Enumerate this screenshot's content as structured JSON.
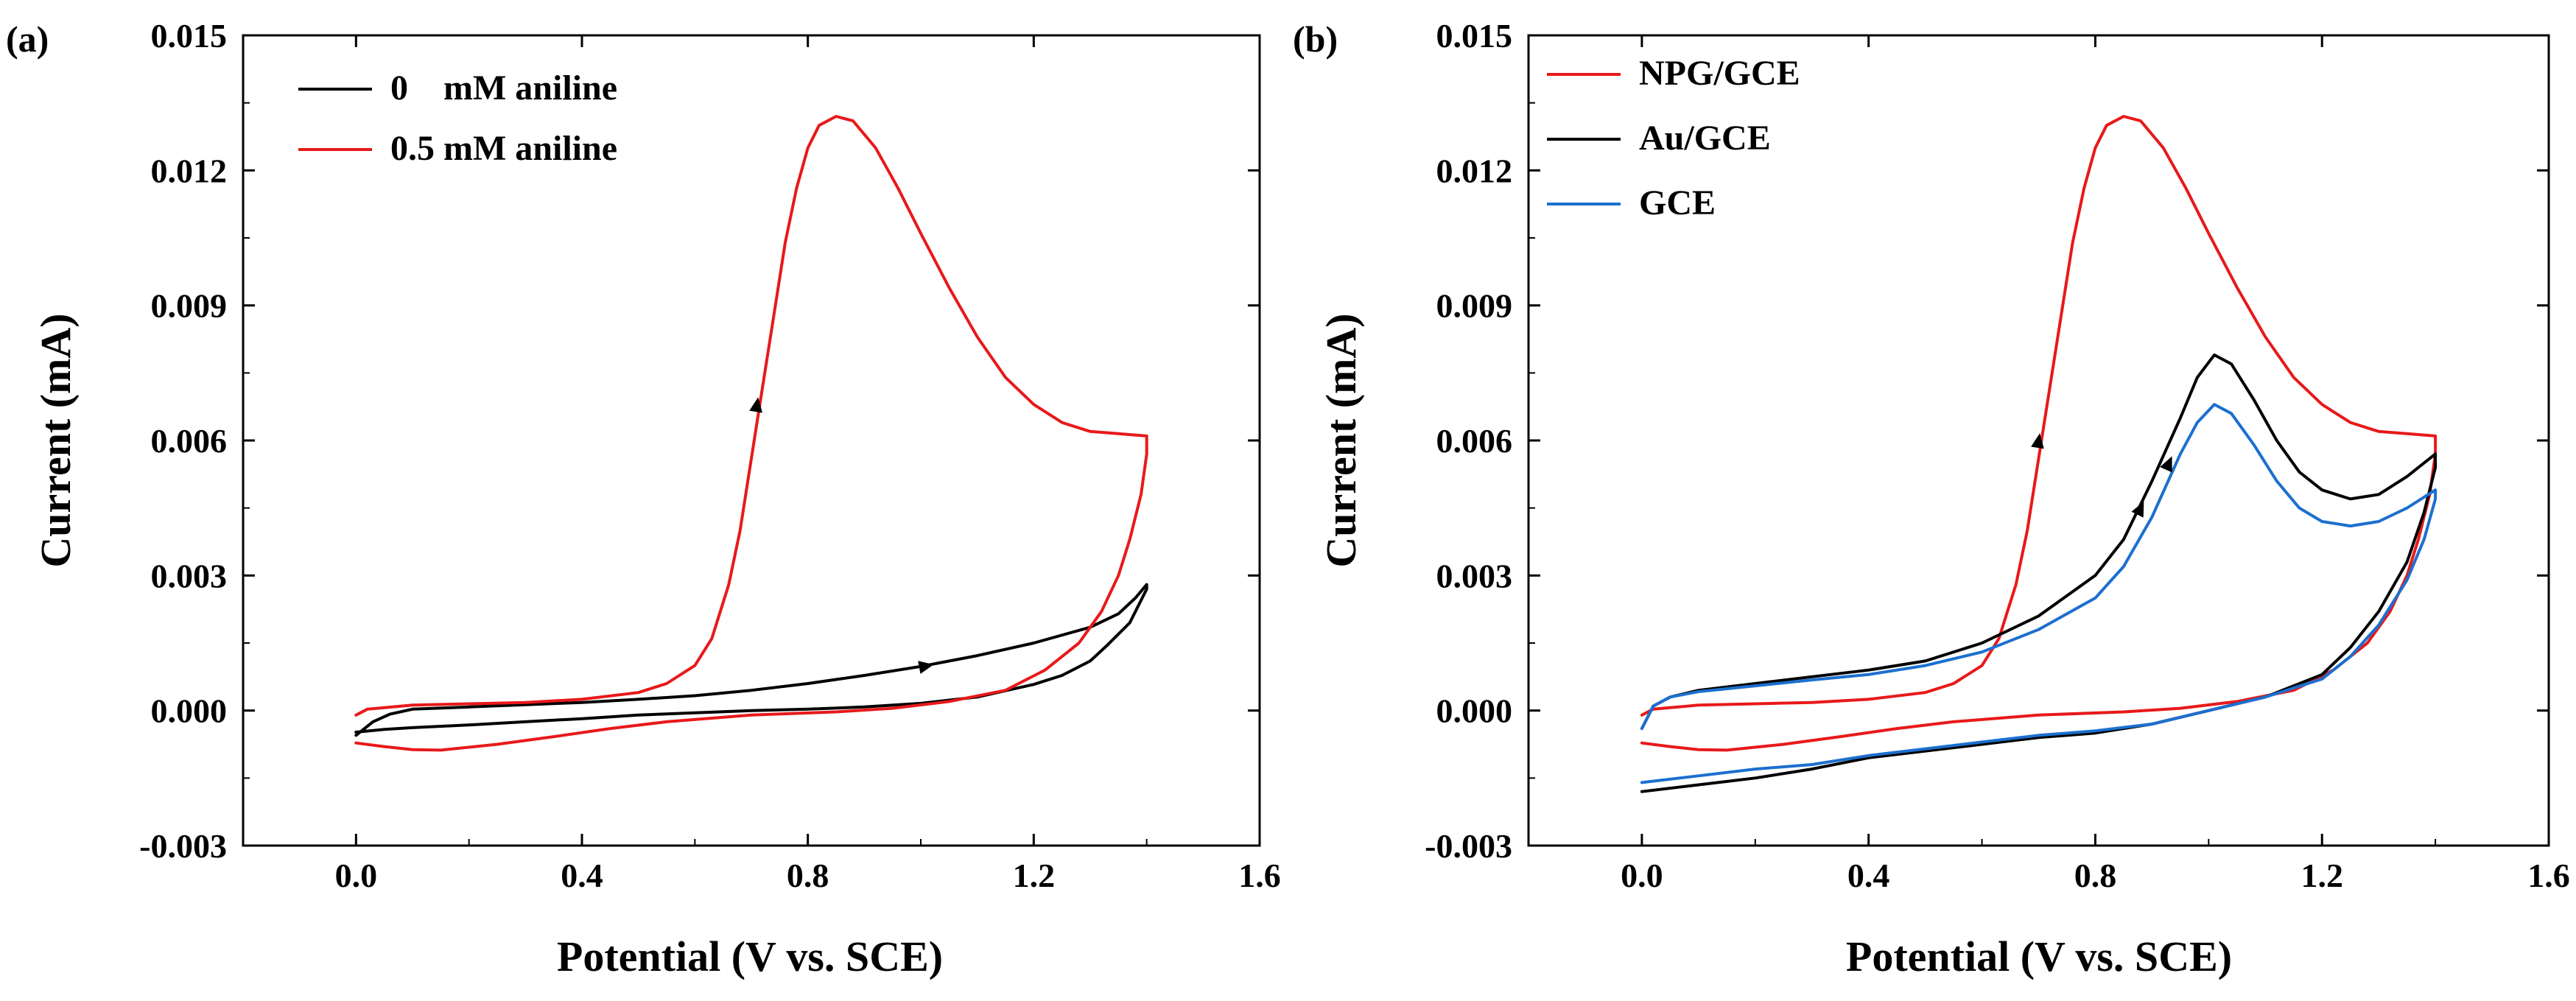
{
  "figure": {
    "panels": [
      "(a)",
      "(b)"
    ]
  },
  "chart_data": [
    {
      "type": "line",
      "panel_label": "(a)",
      "title": "",
      "xlabel": "Potential (V vs.  SCE)",
      "ylabel": "Current (mA)",
      "xlim": [
        -0.2,
        1.6
      ],
      "ylim": [
        -0.003,
        0.015
      ],
      "xticks": [
        "0.0",
        "0.4",
        "0.8",
        "1.2",
        "1.6"
      ],
      "yticks": [
        "-0.003",
        "0.000",
        "0.003",
        "0.006",
        "0.009",
        "0.012",
        "0.015"
      ],
      "grid": false,
      "legend_position": "top-left",
      "legend": [
        "0    mM aniline",
        "0.5 mM aniline"
      ],
      "series": [
        {
          "name": "0    mM aniline",
          "color": "#000000",
          "arrow": {
            "x": 1.01,
            "y": 0.00099
          },
          "points": [
            [
              0.0,
              -0.00055
            ],
            [
              0.03,
              -0.00025
            ],
            [
              0.06,
              -8e-05
            ],
            [
              0.1,
              3e-05
            ],
            [
              0.2,
              8e-05
            ],
            [
              0.3,
              0.00013
            ],
            [
              0.4,
              0.00018
            ],
            [
              0.5,
              0.00025
            ],
            [
              0.6,
              0.00033
            ],
            [
              0.7,
              0.00045
            ],
            [
              0.8,
              0.0006
            ],
            [
              0.9,
              0.00078
            ],
            [
              1.0,
              0.00098
            ],
            [
              1.1,
              0.00122
            ],
            [
              1.2,
              0.0015
            ],
            [
              1.3,
              0.00185
            ],
            [
              1.35,
              0.00215
            ],
            [
              1.38,
              0.0025
            ],
            [
              1.4,
              0.0028
            ],
            [
              1.4,
              0.0027
            ],
            [
              1.37,
              0.00195
            ],
            [
              1.33,
              0.00145
            ],
            [
              1.3,
              0.0011
            ],
            [
              1.25,
              0.00078
            ],
            [
              1.2,
              0.00058
            ],
            [
              1.1,
              0.0003
            ],
            [
              1.0,
              0.00016
            ],
            [
              0.9,
              8e-05
            ],
            [
              0.8,
              3e-05
            ],
            [
              0.7,
              0.0
            ],
            [
              0.6,
              -5e-05
            ],
            [
              0.5,
              -0.0001
            ],
            [
              0.4,
              -0.00018
            ],
            [
              0.3,
              -0.00025
            ],
            [
              0.2,
              -0.00032
            ],
            [
              0.1,
              -0.00038
            ],
            [
              0.05,
              -0.00042
            ],
            [
              0.0,
              -0.00048
            ]
          ]
        },
        {
          "name": "0.5 mM aniline",
          "color": "#e8191a",
          "arrow": {
            "x": 0.71,
            "y": 0.0068
          },
          "points": [
            [
              0.0,
              -0.0001
            ],
            [
              0.02,
              3e-05
            ],
            [
              0.1,
              0.00012
            ],
            [
              0.2,
              0.00015
            ],
            [
              0.3,
              0.00018
            ],
            [
              0.4,
              0.00025
            ],
            [
              0.5,
              0.0004
            ],
            [
              0.55,
              0.0006
            ],
            [
              0.6,
              0.001
            ],
            [
              0.63,
              0.0016
            ],
            [
              0.66,
              0.0028
            ],
            [
              0.68,
              0.004
            ],
            [
              0.7,
              0.0056
            ],
            [
              0.72,
              0.0072
            ],
            [
              0.74,
              0.0088
            ],
            [
              0.76,
              0.0104
            ],
            [
              0.78,
              0.0116
            ],
            [
              0.8,
              0.0125
            ],
            [
              0.82,
              0.013
            ],
            [
              0.85,
              0.0132
            ],
            [
              0.88,
              0.0131
            ],
            [
              0.92,
              0.0125
            ],
            [
              0.96,
              0.0116
            ],
            [
              1.0,
              0.0106
            ],
            [
              1.05,
              0.0094
            ],
            [
              1.1,
              0.0083
            ],
            [
              1.15,
              0.0074
            ],
            [
              1.2,
              0.0068
            ],
            [
              1.25,
              0.0064
            ],
            [
              1.3,
              0.0062
            ],
            [
              1.35,
              0.00615
            ],
            [
              1.4,
              0.0061
            ],
            [
              1.4,
              0.0057
            ],
            [
              1.39,
              0.0048
            ],
            [
              1.37,
              0.0038
            ],
            [
              1.35,
              0.003
            ],
            [
              1.32,
              0.0022
            ],
            [
              1.28,
              0.0015
            ],
            [
              1.22,
              0.0009
            ],
            [
              1.15,
              0.00045
            ],
            [
              1.05,
              0.0002
            ],
            [
              0.95,
              5e-05
            ],
            [
              0.85,
              -3e-05
            ],
            [
              0.7,
              -0.0001
            ],
            [
              0.55,
              -0.00025
            ],
            [
              0.45,
              -0.0004
            ],
            [
              0.35,
              -0.00058
            ],
            [
              0.25,
              -0.00075
            ],
            [
              0.15,
              -0.00088
            ],
            [
              0.1,
              -0.00087
            ],
            [
              0.05,
              -0.0008
            ],
            [
              0.0,
              -0.00072
            ]
          ]
        }
      ]
    },
    {
      "type": "line",
      "panel_label": "(b)",
      "title": "",
      "xlabel": "Potential (V vs.  SCE)",
      "ylabel": "Current (mA)",
      "xlim": [
        -0.2,
        1.6
      ],
      "ylim": [
        -0.003,
        0.015
      ],
      "xticks": [
        "0.0",
        "0.4",
        "0.8",
        "1.2",
        "1.6"
      ],
      "yticks": [
        "-0.003",
        "0.000",
        "0.003",
        "0.006",
        "0.009",
        "0.012",
        "0.015"
      ],
      "grid": false,
      "legend_position": "top-left",
      "legend": [
        "NPG/GCE",
        "Au/GCE",
        "GCE"
      ],
      "series": [
        {
          "name": "NPG/GCE",
          "color": "#e8191a",
          "arrow": {
            "x": 0.7,
            "y": 0.006
          },
          "points": [
            [
              0.0,
              -0.0001
            ],
            [
              0.02,
              3e-05
            ],
            [
              0.1,
              0.00012
            ],
            [
              0.2,
              0.00015
            ],
            [
              0.3,
              0.00018
            ],
            [
              0.4,
              0.00025
            ],
            [
              0.5,
              0.0004
            ],
            [
              0.55,
              0.0006
            ],
            [
              0.6,
              0.001
            ],
            [
              0.63,
              0.0016
            ],
            [
              0.66,
              0.0028
            ],
            [
              0.68,
              0.004
            ],
            [
              0.7,
              0.0056
            ],
            [
              0.72,
              0.0072
            ],
            [
              0.74,
              0.0088
            ],
            [
              0.76,
              0.0104
            ],
            [
              0.78,
              0.0116
            ],
            [
              0.8,
              0.0125
            ],
            [
              0.82,
              0.013
            ],
            [
              0.85,
              0.0132
            ],
            [
              0.88,
              0.0131
            ],
            [
              0.92,
              0.0125
            ],
            [
              0.96,
              0.0116
            ],
            [
              1.0,
              0.0106
            ],
            [
              1.05,
              0.0094
            ],
            [
              1.1,
              0.0083
            ],
            [
              1.15,
              0.0074
            ],
            [
              1.2,
              0.0068
            ],
            [
              1.25,
              0.0064
            ],
            [
              1.3,
              0.0062
            ],
            [
              1.35,
              0.00615
            ],
            [
              1.4,
              0.0061
            ],
            [
              1.4,
              0.0057
            ],
            [
              1.39,
              0.0048
            ],
            [
              1.37,
              0.0038
            ],
            [
              1.35,
              0.003
            ],
            [
              1.32,
              0.0022
            ],
            [
              1.28,
              0.0015
            ],
            [
              1.22,
              0.0009
            ],
            [
              1.15,
              0.00045
            ],
            [
              1.05,
              0.0002
            ],
            [
              0.95,
              5e-05
            ],
            [
              0.85,
              -3e-05
            ],
            [
              0.7,
              -0.0001
            ],
            [
              0.55,
              -0.00025
            ],
            [
              0.45,
              -0.0004
            ],
            [
              0.35,
              -0.00058
            ],
            [
              0.25,
              -0.00075
            ],
            [
              0.15,
              -0.00088
            ],
            [
              0.1,
              -0.00087
            ],
            [
              0.05,
              -0.0008
            ],
            [
              0.0,
              -0.00072
            ]
          ]
        },
        {
          "name": "Au/GCE",
          "color": "#000000",
          "arrow": {
            "x": 0.88,
            "y": 0.0045
          },
          "points": [
            [
              0.0,
              -0.0004
            ],
            [
              0.02,
              0.0001
            ],
            [
              0.05,
              0.0003
            ],
            [
              0.1,
              0.00045
            ],
            [
              0.2,
              0.0006
            ],
            [
              0.3,
              0.00075
            ],
            [
              0.4,
              0.0009
            ],
            [
              0.5,
              0.0011
            ],
            [
              0.6,
              0.0015
            ],
            [
              0.7,
              0.0021
            ],
            [
              0.8,
              0.003
            ],
            [
              0.85,
              0.0038
            ],
            [
              0.9,
              0.0051
            ],
            [
              0.95,
              0.0065
            ],
            [
              0.98,
              0.0074
            ],
            [
              1.01,
              0.0079
            ],
            [
              1.04,
              0.0077
            ],
            [
              1.08,
              0.0069
            ],
            [
              1.12,
              0.006
            ],
            [
              1.16,
              0.0053
            ],
            [
              1.2,
              0.0049
            ],
            [
              1.25,
              0.0047
            ],
            [
              1.3,
              0.0048
            ],
            [
              1.35,
              0.0052
            ],
            [
              1.4,
              0.0057
            ],
            [
              1.4,
              0.0054
            ],
            [
              1.38,
              0.0044
            ],
            [
              1.35,
              0.0033
            ],
            [
              1.3,
              0.0022
            ],
            [
              1.25,
              0.0014
            ],
            [
              1.2,
              0.0008
            ],
            [
              1.1,
              0.0003
            ],
            [
              1.0,
              0.0
            ],
            [
              0.9,
              -0.0003
            ],
            [
              0.8,
              -0.0005
            ],
            [
              0.7,
              -0.0006
            ],
            [
              0.6,
              -0.00075
            ],
            [
              0.5,
              -0.0009
            ],
            [
              0.4,
              -0.00105
            ],
            [
              0.3,
              -0.0013
            ],
            [
              0.2,
              -0.0015
            ],
            [
              0.1,
              -0.00165
            ],
            [
              0.0,
              -0.0018
            ]
          ]
        },
        {
          "name": "GCE",
          "color": "#1c6fcf",
          "arrow": {
            "x": 0.93,
            "y": 0.0055
          },
          "points": [
            [
              0.0,
              -0.0004
            ],
            [
              0.02,
              0.0001
            ],
            [
              0.05,
              0.0003
            ],
            [
              0.1,
              0.00042
            ],
            [
              0.2,
              0.00055
            ],
            [
              0.3,
              0.00068
            ],
            [
              0.4,
              0.0008
            ],
            [
              0.5,
              0.001
            ],
            [
              0.6,
              0.0013
            ],
            [
              0.7,
              0.0018
            ],
            [
              0.8,
              0.0025
            ],
            [
              0.85,
              0.0032
            ],
            [
              0.9,
              0.0043
            ],
            [
              0.95,
              0.0057
            ],
            [
              0.98,
              0.0064
            ],
            [
              1.01,
              0.0068
            ],
            [
              1.04,
              0.0066
            ],
            [
              1.08,
              0.0059
            ],
            [
              1.12,
              0.0051
            ],
            [
              1.16,
              0.0045
            ],
            [
              1.2,
              0.0042
            ],
            [
              1.25,
              0.0041
            ],
            [
              1.3,
              0.0042
            ],
            [
              1.35,
              0.0045
            ],
            [
              1.4,
              0.0049
            ],
            [
              1.4,
              0.0047
            ],
            [
              1.38,
              0.0038
            ],
            [
              1.35,
              0.0029
            ],
            [
              1.3,
              0.0019
            ],
            [
              1.25,
              0.0012
            ],
            [
              1.2,
              0.0007
            ],
            [
              1.1,
              0.0003
            ],
            [
              1.0,
              0.0
            ],
            [
              0.9,
              -0.0003
            ],
            [
              0.8,
              -0.00045
            ],
            [
              0.7,
              -0.00055
            ],
            [
              0.6,
              -0.0007
            ],
            [
              0.5,
              -0.00085
            ],
            [
              0.4,
              -0.001
            ],
            [
              0.3,
              -0.0012
            ],
            [
              0.2,
              -0.0013
            ],
            [
              0.1,
              -0.00145
            ],
            [
              0.0,
              -0.0016
            ]
          ]
        }
      ]
    }
  ]
}
